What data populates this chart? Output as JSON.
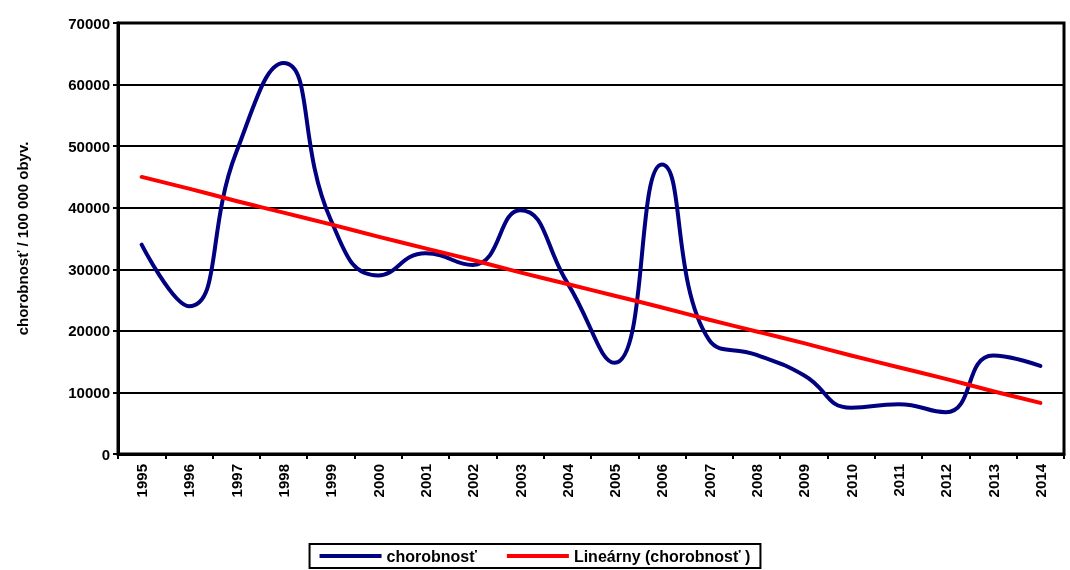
{
  "chart_data": {
    "type": "line",
    "ylabel": "chorobnosť / 100 000 obyv.",
    "categories": [
      "1995",
      "1996",
      "1997",
      "1998",
      "1999",
      "2000",
      "2001",
      "2002",
      "2003",
      "2004",
      "2005",
      "2006",
      "2007",
      "2008",
      "2009",
      "2010",
      "2011",
      "2012",
      "2013",
      "2014"
    ],
    "series": [
      {
        "name": "chorobnosť",
        "color": "#000080",
        "values": [
          34000,
          24000,
          49000,
          63500,
          38000,
          29000,
          32600,
          30700,
          39600,
          27800,
          14800,
          47000,
          18500,
          16100,
          12800,
          7500,
          8100,
          6800,
          16000,
          14300
        ]
      },
      {
        "name": "Lineárny (chorobnosť )",
        "color": "#ff0000",
        "values": [
          45000,
          43100,
          41100,
          39200,
          37300,
          35300,
          33400,
          31500,
          29500,
          27600,
          25700,
          23800,
          21800,
          19900,
          18000,
          16000,
          14100,
          12200,
          10200,
          8300
        ]
      }
    ],
    "ylim": [
      0,
      70000
    ],
    "yticks": [
      0,
      10000,
      20000,
      30000,
      40000,
      50000,
      60000,
      70000
    ],
    "grid": "y",
    "legend": "bottom",
    "marker": "none",
    "line_style": "solid"
  }
}
